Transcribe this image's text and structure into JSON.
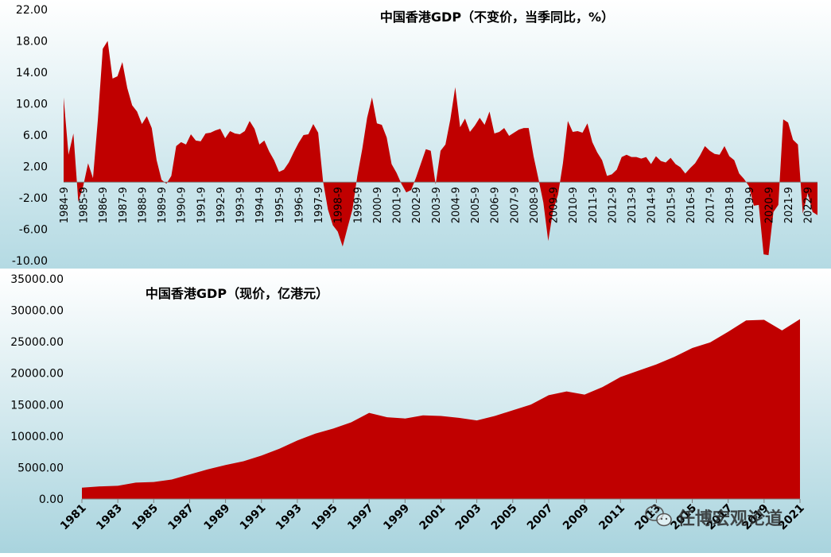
{
  "watermark": {
    "text": "任博宏观论道",
    "icon": "wechat-icon"
  },
  "colors": {
    "fill": "#c00000",
    "bg_top": "#ffffff",
    "bg_bottom": "#a8d4de",
    "text": "#000000"
  },
  "chart_data": [
    {
      "type": "area",
      "title": "中国香港GDP（不变价，当季同比，%）",
      "xlabel": "",
      "ylabel": "",
      "ylim": [
        -10,
        22
      ],
      "yticks": [
        "22.00",
        "18.00",
        "14.00",
        "10.00",
        "6.00",
        "2.00",
        "-2.00",
        "-6.00",
        "-10.00"
      ],
      "ytick_values": [
        22,
        18,
        14,
        10,
        6,
        2,
        -2,
        -6,
        -10
      ],
      "x_start": "1984-9",
      "x_step": "quarter",
      "xticks": [
        "1984-9",
        "1985-9",
        "1986-9",
        "1987-9",
        "1988-9",
        "1989-9",
        "1990-9",
        "1991-9",
        "1992-9",
        "1993-9",
        "1994-9",
        "1995-9",
        "1996-9",
        "1997-9",
        "1998-9",
        "1999-9",
        "2000-9",
        "2001-9",
        "2002-9",
        "2003-9",
        "2004-9",
        "2005-9",
        "2006-9",
        "2007-9",
        "2008-9",
        "2009-9",
        "2010-9",
        "2011-9",
        "2012-9",
        "2013-9",
        "2014-9",
        "2015-9",
        "2016-9",
        "2017-9",
        "2018-9",
        "2019-9",
        "2020-9",
        "2021-9",
        "2022-9"
      ],
      "values": [
        10.8,
        3.5,
        6.2,
        -2.5,
        -0.5,
        2.4,
        0.5,
        8.0,
        17.0,
        18.0,
        13.2,
        13.5,
        15.3,
        12.0,
        9.8,
        9.0,
        7.4,
        8.4,
        6.9,
        2.8,
        0.3,
        -0.2,
        0.8,
        4.6,
        5.1,
        4.8,
        6.1,
        5.3,
        5.2,
        6.2,
        6.3,
        6.6,
        6.8,
        5.6,
        6.5,
        6.2,
        6.1,
        6.5,
        7.8,
        6.8,
        4.8,
        5.3,
        3.9,
        2.8,
        1.3,
        1.6,
        2.5,
        3.8,
        5.0,
        6.0,
        6.1,
        7.4,
        6.3,
        0.1,
        -3.5,
        -5.5,
        -6.3,
        -8.2,
        -5.8,
        -3.5,
        0.8,
        4.2,
        8.2,
        10.8,
        7.5,
        7.3,
        5.7,
        2.3,
        1.2,
        -0.2,
        -1.3,
        -1.0,
        0.6,
        2.4,
        4.2,
        4.0,
        -0.3,
        4.0,
        4.8,
        8.0,
        12.1,
        7.0,
        8.1,
        6.4,
        7.2,
        8.2,
        7.3,
        9.0,
        6.2,
        6.4,
        6.9,
        5.9,
        6.3,
        6.7,
        6.9,
        6.9,
        3.3,
        0.4,
        -2.6,
        -7.5,
        -3.6,
        -1.6,
        2.4,
        7.8,
        6.4,
        6.5,
        6.3,
        7.5,
        5.1,
        3.8,
        2.8,
        0.8,
        1.0,
        1.6,
        3.2,
        3.5,
        3.2,
        3.2,
        3.0,
        3.2,
        2.3,
        3.3,
        2.7,
        2.5,
        3.1,
        2.3,
        1.9,
        1.1,
        1.8,
        2.4,
        3.4,
        4.6,
        4.0,
        3.6,
        3.5,
        4.6,
        3.3,
        2.8,
        1.1,
        0.4,
        -0.5,
        -3.0,
        -2.9,
        -9.2,
        -9.3,
        -3.8,
        -2.9,
        8.0,
        7.6,
        5.4,
        4.8,
        -4.0,
        -1.4,
        -3.8,
        -4.2
      ]
    },
    {
      "type": "area",
      "title": "中国香港GDP（现价，亿港元）",
      "xlabel": "",
      "ylabel": "",
      "ylim": [
        0,
        35000
      ],
      "yticks": [
        "35000.00",
        "30000.00",
        "25000.00",
        "20000.00",
        "15000.00",
        "10000.00",
        "5000.00",
        "0.00"
      ],
      "ytick_values": [
        35000,
        30000,
        25000,
        20000,
        15000,
        10000,
        5000,
        0
      ],
      "x": [
        1981,
        1982,
        1983,
        1984,
        1985,
        1986,
        1987,
        1988,
        1989,
        1990,
        1991,
        1992,
        1993,
        1994,
        1995,
        1996,
        1997,
        1998,
        1999,
        2000,
        2001,
        2002,
        2003,
        2004,
        2005,
        2006,
        2007,
        2008,
        2009,
        2010,
        2011,
        2012,
        2013,
        2014,
        2015,
        2016,
        2017,
        2018,
        2019,
        2020,
        2021
      ],
      "xticks": [
        "1981",
        "1983",
        "1985",
        "1987",
        "1989",
        "1991",
        "1993",
        "1995",
        "1997",
        "1999",
        "2001",
        "2003",
        "2005",
        "2007",
        "2009",
        "2011",
        "2013",
        "2015",
        "2017",
        "2019",
        "2021"
      ],
      "xtick_values": [
        1981,
        1983,
        1985,
        1987,
        1989,
        1991,
        1993,
        1995,
        1997,
        1999,
        2001,
        2003,
        2005,
        2007,
        2009,
        2011,
        2013,
        2015,
        2017,
        2019,
        2021
      ],
      "values": [
        1800,
        2000,
        2100,
        2600,
        2700,
        3100,
        3900,
        4700,
        5400,
        6000,
        6900,
        8000,
        9300,
        10400,
        11200,
        12200,
        13700,
        13000,
        12800,
        13300,
        13200,
        12900,
        12500,
        13200,
        14100,
        15000,
        16500,
        17100,
        16600,
        17800,
        19400,
        20400,
        21400,
        22600,
        24000,
        24900,
        26600,
        28400,
        28500,
        26800,
        28600
      ]
    }
  ]
}
